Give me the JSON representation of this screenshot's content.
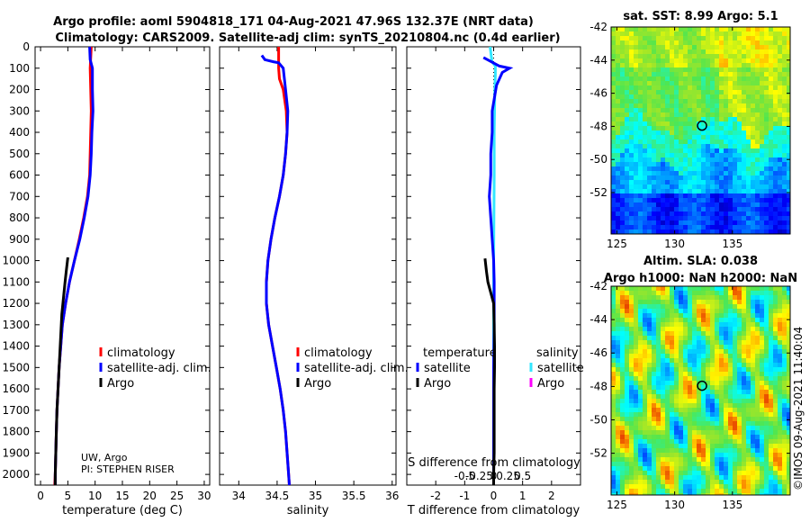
{
  "figure": {
    "title_line1": "Argo profile: aoml 5904818_171 04-Aug-2021 47.96S 132.37E (NRT data)",
    "title_line2": "Climatology: CARS2009. Satellite-adj clim: synTS_20210804.nc (0.4d earlier)",
    "credit": "UW, Argo",
    "pi": "PI: STEPHEN RISER",
    "side_stamp": "©IMOS 09-Aug-2021 11:40:04"
  },
  "colors": {
    "climatology": "#ff0000",
    "satellite_clim": "#0000ff",
    "argo": "#000000",
    "sat_salinity": "#33e6ff",
    "argo_salinity": "#ff00ff"
  },
  "chart_data": [
    {
      "type": "line",
      "panel": "temperature",
      "xlabel": "temperature (deg C)",
      "xlim": [
        -1,
        31
      ],
      "xticks": [
        0,
        5,
        10,
        15,
        20,
        25,
        30
      ],
      "xticklabels": [
        "0",
        "5",
        "10",
        "15",
        "20",
        "25",
        "30"
      ],
      "ylim": [
        2050,
        0
      ],
      "yticks": [
        0,
        100,
        200,
        300,
        400,
        500,
        600,
        700,
        800,
        900,
        1000,
        1100,
        1200,
        1300,
        1400,
        1500,
        1600,
        1700,
        1800,
        1900,
        2000
      ],
      "yticklabels": [
        "0",
        "100",
        "200",
        "300",
        "400",
        "500",
        "600",
        "700",
        "800",
        "900",
        "1000",
        "1100",
        "1200",
        "1300",
        "1400",
        "1500",
        "1600",
        "1700",
        "1800",
        "1900",
        "2000"
      ],
      "legend": [
        "climatology",
        "satellite-adj. clim.",
        "Argo"
      ],
      "series": [
        {
          "name": "climatology",
          "color": "#ff0000",
          "points": [
            [
              9.3,
              0
            ],
            [
              9.1,
              100
            ],
            [
              9.2,
              200
            ],
            [
              9.3,
              300
            ],
            [
              9.2,
              400
            ],
            [
              9.1,
              500
            ],
            [
              9.0,
              600
            ],
            [
              8.6,
              700
            ],
            [
              7.9,
              800
            ],
            [
              7.1,
              900
            ],
            [
              6.2,
              1000
            ],
            [
              5.3,
              1100
            ],
            [
              4.6,
              1200
            ],
            [
              4.0,
              1300
            ],
            [
              3.7,
              1400
            ],
            [
              3.4,
              1500
            ],
            [
              3.2,
              1600
            ],
            [
              3.0,
              1700
            ],
            [
              2.9,
              1800
            ],
            [
              2.8,
              1900
            ],
            [
              2.7,
              2000
            ],
            [
              2.6,
              2050
            ]
          ]
        },
        {
          "name": "satellite-adj. clim.",
          "color": "#0000ff",
          "points": [
            [
              9.0,
              0
            ],
            [
              9.1,
              60
            ],
            [
              9.5,
              100
            ],
            [
              9.5,
              200
            ],
            [
              9.6,
              300
            ],
            [
              9.4,
              400
            ],
            [
              9.3,
              500
            ],
            [
              9.1,
              600
            ],
            [
              8.7,
              700
            ],
            [
              8.0,
              800
            ],
            [
              7.2,
              900
            ],
            [
              6.2,
              1000
            ],
            [
              5.3,
              1100
            ],
            [
              4.6,
              1200
            ],
            [
              4.0,
              1300
            ],
            [
              3.7,
              1400
            ],
            [
              3.4,
              1500
            ],
            [
              3.2,
              1600
            ],
            [
              3.0,
              1700
            ],
            [
              2.9,
              1800
            ],
            [
              2.8,
              1900
            ],
            [
              2.7,
              2000
            ],
            [
              2.7,
              2050
            ]
          ]
        },
        {
          "name": "Argo",
          "color": "#000000",
          "points": [
            [
              5.0,
              985
            ],
            [
              4.7,
              1050
            ],
            [
              4.5,
              1100
            ],
            [
              4.3,
              1150
            ],
            [
              4.1,
              1200
            ],
            [
              3.9,
              1250
            ],
            [
              3.8,
              1300
            ],
            [
              3.6,
              1400
            ],
            [
              3.4,
              1500
            ],
            [
              3.2,
              1600
            ],
            [
              3.0,
              1700
            ],
            [
              2.9,
              1800
            ],
            [
              2.8,
              1900
            ],
            [
              2.7,
              2000
            ],
            [
              2.7,
              2050
            ]
          ]
        }
      ]
    },
    {
      "type": "line",
      "panel": "salinity",
      "xlabel": "salinity",
      "xlim": [
        33.75,
        36.05
      ],
      "xticks": [
        34,
        34.5,
        35,
        35.5,
        36
      ],
      "xticklabels": [
        "34",
        "34.5",
        "35",
        "35.5",
        "36"
      ],
      "ylim": [
        2050,
        0
      ],
      "legend": [
        "climatology",
        "satellite-adj. clim.",
        "Argo"
      ],
      "series": [
        {
          "name": "climatology",
          "color": "#ff0000",
          "points": [
            [
              34.52,
              0
            ],
            [
              34.52,
              100
            ],
            [
              34.53,
              150
            ],
            [
              34.58,
              200
            ],
            [
              34.62,
              300
            ],
            [
              34.63,
              400
            ],
            [
              34.61,
              500
            ],
            [
              34.58,
              600
            ],
            [
              34.53,
              700
            ],
            [
              34.47,
              800
            ],
            [
              34.42,
              900
            ],
            [
              34.38,
              1000
            ],
            [
              34.36,
              1100
            ],
            [
              34.36,
              1200
            ],
            [
              34.39,
              1300
            ],
            [
              34.44,
              1400
            ],
            [
              34.49,
              1500
            ],
            [
              34.54,
              1600
            ],
            [
              34.58,
              1700
            ],
            [
              34.61,
              1800
            ],
            [
              34.63,
              1900
            ],
            [
              34.65,
              2000
            ],
            [
              34.66,
              2050
            ]
          ]
        },
        {
          "name": "satellite-adj. clim.",
          "color": "#0000ff",
          "points": [
            [
              34.3,
              40
            ],
            [
              34.34,
              60
            ],
            [
              34.45,
              70
            ],
            [
              34.52,
              75
            ],
            [
              34.58,
              100
            ],
            [
              34.61,
              200
            ],
            [
              34.64,
              300
            ],
            [
              34.63,
              400
            ],
            [
              34.61,
              500
            ],
            [
              34.58,
              600
            ],
            [
              34.53,
              700
            ],
            [
              34.47,
              800
            ],
            [
              34.42,
              900
            ],
            [
              34.38,
              1000
            ],
            [
              34.36,
              1100
            ],
            [
              34.36,
              1200
            ],
            [
              34.39,
              1300
            ],
            [
              34.44,
              1400
            ],
            [
              34.49,
              1500
            ],
            [
              34.54,
              1600
            ],
            [
              34.58,
              1700
            ],
            [
              34.61,
              1800
            ],
            [
              34.63,
              1900
            ],
            [
              34.65,
              2000
            ],
            [
              34.66,
              2050
            ]
          ]
        },
        {
          "name": "Argo",
          "color": "#000000",
          "points": []
        }
      ]
    },
    {
      "type": "line",
      "panel": "T difference from climatology",
      "xlabel": "T difference from climatology",
      "xlim": [
        -3,
        3
      ],
      "xticks": [
        -2,
        -1,
        0,
        1,
        2
      ],
      "xticklabels": [
        "-2",
        "-1",
        "0",
        "1",
        "2"
      ],
      "secondary_axis_label": "S difference from climatology",
      "secondary_ticklabels": [
        "-0.5",
        "-0.25",
        "0",
        "0.25",
        "0.5"
      ],
      "ylim": [
        2050,
        0
      ],
      "legend_temperature_header": "temperature",
      "legend_salinity_header": "salinity",
      "legend": [
        "satellite",
        "Argo",
        "satellite",
        "Argo"
      ],
      "series": [
        {
          "name": "temperature satellite",
          "color": "#0000ff",
          "points": [
            [
              -0.35,
              50
            ],
            [
              0.2,
              90
            ],
            [
              0.55,
              100
            ],
            [
              0.3,
              120
            ],
            [
              0.1,
              180
            ],
            [
              -0.05,
              300
            ],
            [
              -0.05,
              400
            ],
            [
              -0.1,
              500
            ],
            [
              -0.1,
              600
            ],
            [
              -0.15,
              700
            ],
            [
              -0.1,
              800
            ],
            [
              -0.05,
              900
            ],
            [
              0.0,
              1000
            ],
            [
              0.02,
              1100
            ],
            [
              0.02,
              1200
            ],
            [
              0.02,
              1300
            ],
            [
              0.0,
              1500
            ],
            [
              0.0,
              2050
            ]
          ]
        },
        {
          "name": "temperature Argo",
          "color": "#000000",
          "points": [
            [
              -0.3,
              990
            ],
            [
              -0.25,
              1050
            ],
            [
              -0.2,
              1100
            ],
            [
              -0.1,
              1150
            ],
            [
              0.0,
              1200
            ],
            [
              0.02,
              1300
            ],
            [
              0.03,
              1400
            ],
            [
              0.03,
              1500
            ],
            [
              0.02,
              1600
            ],
            [
              0.02,
              1700
            ],
            [
              0.02,
              1800
            ],
            [
              0.02,
              1900
            ],
            [
              0.0,
              2000
            ],
            [
              0.0,
              2050
            ]
          ]
        },
        {
          "name": "salinity satellite",
          "color": "#33e6ff",
          "points": [
            [
              -0.12,
              0
            ],
            [
              -0.06,
              70
            ],
            [
              0.06,
              90
            ],
            [
              0.06,
              130
            ],
            [
              0.04,
              200
            ],
            [
              0.03,
              300
            ],
            [
              0.02,
              400
            ],
            [
              0.02,
              600
            ],
            [
              0.01,
              800
            ],
            [
              0.0,
              1000
            ],
            [
              0.0,
              1500
            ],
            [
              0.0,
              2050
            ]
          ]
        },
        {
          "name": "salinity Argo",
          "color": "#ff00ff",
          "points": []
        }
      ]
    },
    {
      "type": "heatmap",
      "panel": "sat. SST",
      "title": "sat. SST: 8.99 Argo: 5.1",
      "xlim": [
        124.5,
        140
      ],
      "ylim": [
        -54.5,
        -42
      ],
      "xticks": [
        125,
        130,
        135
      ],
      "xticklabels": [
        "125",
        "130",
        "135"
      ],
      "yticks": [
        -42,
        -44,
        -46,
        -48,
        -50,
        -52
      ],
      "yticklabels": [
        "-42",
        "-44",
        "-46",
        "-48",
        "-50",
        "-52"
      ],
      "marker": [
        132.37,
        -47.96
      ]
    },
    {
      "type": "heatmap",
      "panel": "Altim. SLA",
      "title_line1": "Altim. SLA: 0.038",
      "title_line2": "Argo h1000: NaN h2000: NaN",
      "xlim": [
        124.5,
        140
      ],
      "ylim": [
        -54.5,
        -42
      ],
      "xticks": [
        125,
        130,
        135
      ],
      "xticklabels": [
        "125",
        "130",
        "135"
      ],
      "yticks": [
        -42,
        -44,
        -46,
        -48,
        -50,
        -52
      ],
      "yticklabels": [
        "-42",
        "-44",
        "-46",
        "-48",
        "-50",
        "-52"
      ],
      "marker": [
        132.37,
        -47.96
      ]
    }
  ]
}
